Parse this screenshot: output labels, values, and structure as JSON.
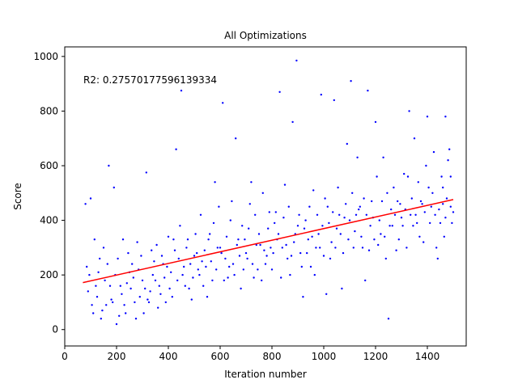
{
  "chart_data": {
    "type": "scatter",
    "title": "All Optimizations",
    "xlabel": "Iteration number",
    "ylabel": "Score",
    "xlim": [
      0,
      1550
    ],
    "ylim": [
      -60,
      1035
    ],
    "xticks": [
      0,
      200,
      400,
      600,
      800,
      1000,
      1200,
      1400
    ],
    "yticks": [
      0,
      200,
      400,
      600,
      800,
      1000
    ],
    "grid": false,
    "annotation": "R2: 0.27570177596139334",
    "point_color": "#0000ff",
    "line_color": "#ff0000",
    "fit_line": {
      "x": [
        70,
        1500
      ],
      "y": [
        172,
        476
      ]
    },
    "points": [
      [
        90,
        140
      ],
      [
        120,
        160
      ],
      [
        160,
        90
      ],
      [
        200,
        20
      ],
      [
        150,
        300
      ],
      [
        220,
        130
      ],
      [
        250,
        210
      ],
      [
        300,
        180
      ],
      [
        330,
        140
      ],
      [
        350,
        180
      ],
      [
        380,
        240
      ],
      [
        420,
        330
      ],
      [
        460,
        230
      ],
      [
        500,
        270
      ],
      [
        560,
        350
      ],
      [
        600,
        300
      ],
      [
        650,
        240
      ],
      [
        700,
        280
      ],
      [
        740,
        310
      ],
      [
        780,
        270
      ],
      [
        820,
        330
      ],
      [
        860,
        260
      ],
      [
        900,
        380
      ],
      [
        940,
        330
      ],
      [
        980,
        350
      ],
      [
        1020,
        390
      ],
      [
        1060,
        420
      ],
      [
        1100,
        400
      ],
      [
        1140,
        450
      ],
      [
        1180,
        380
      ],
      [
        1220,
        350
      ],
      [
        1260,
        440
      ],
      [
        1300,
        410
      ],
      [
        1340,
        480
      ],
      [
        1380,
        460
      ],
      [
        1420,
        500
      ],
      [
        1460,
        520
      ],
      [
        1490,
        450
      ],
      [
        1500,
        430
      ],
      [
        95,
        200
      ],
      [
        110,
        60
      ],
      [
        135,
        260
      ],
      [
        170,
        600
      ],
      [
        190,
        520
      ],
      [
        230,
        90
      ],
      [
        260,
        240
      ],
      [
        290,
        120
      ],
      [
        315,
        575
      ],
      [
        345,
        250
      ],
      [
        370,
        130
      ],
      [
        395,
        230
      ],
      [
        430,
        660
      ],
      [
        450,
        875
      ],
      [
        480,
        150
      ],
      [
        520,
        200
      ],
      [
        550,
        120
      ],
      [
        580,
        540
      ],
      [
        610,
        830
      ],
      [
        630,
        190
      ],
      [
        660,
        700
      ],
      [
        680,
        150
      ],
      [
        720,
        540
      ],
      [
        760,
        180
      ],
      [
        790,
        430
      ],
      [
        830,
        870
      ],
      [
        850,
        530
      ],
      [
        880,
        760
      ],
      [
        895,
        985
      ],
      [
        920,
        120
      ],
      [
        960,
        510
      ],
      [
        990,
        860
      ],
      [
        1010,
        130
      ],
      [
        1040,
        840
      ],
      [
        1070,
        150
      ],
      [
        1090,
        680
      ],
      [
        1105,
        910
      ],
      [
        1130,
        630
      ],
      [
        1160,
        180
      ],
      [
        1170,
        875
      ],
      [
        1200,
        760
      ],
      [
        1230,
        630
      ],
      [
        1250,
        40
      ],
      [
        1280,
        290
      ],
      [
        1310,
        570
      ],
      [
        1330,
        800
      ],
      [
        1350,
        700
      ],
      [
        1370,
        340
      ],
      [
        1400,
        780
      ],
      [
        1440,
        260
      ],
      [
        1470,
        780
      ],
      [
        1485,
        660
      ],
      [
        105,
        90
      ],
      [
        125,
        120
      ],
      [
        145,
        70
      ],
      [
        175,
        160
      ],
      [
        185,
        100
      ],
      [
        210,
        50
      ],
      [
        240,
        170
      ],
      [
        270,
        100
      ],
      [
        280,
        320
      ],
      [
        305,
        60
      ],
      [
        325,
        100
      ],
      [
        360,
        80
      ],
      [
        385,
        190
      ],
      [
        405,
        150
      ],
      [
        440,
        260
      ],
      [
        470,
        300
      ],
      [
        490,
        110
      ],
      [
        510,
        280
      ],
      [
        530,
        250
      ],
      [
        570,
        180
      ],
      [
        590,
        300
      ],
      [
        620,
        260
      ],
      [
        640,
        400
      ],
      [
        670,
        330
      ],
      [
        690,
        220
      ],
      [
        710,
        370
      ],
      [
        730,
        190
      ],
      [
        750,
        350
      ],
      [
        770,
        290
      ],
      [
        800,
        220
      ],
      [
        810,
        390
      ],
      [
        840,
        300
      ],
      [
        870,
        200
      ],
      [
        890,
        350
      ],
      [
        910,
        280
      ],
      [
        930,
        400
      ],
      [
        950,
        230
      ],
      [
        970,
        300
      ],
      [
        1000,
        270
      ],
      [
        1015,
        450
      ],
      [
        1030,
        320
      ],
      [
        1050,
        370
      ],
      [
        1075,
        280
      ],
      [
        1085,
        460
      ],
      [
        1115,
        300
      ],
      [
        1125,
        420
      ],
      [
        1145,
        340
      ],
      [
        1155,
        480
      ],
      [
        1175,
        290
      ],
      [
        1190,
        410
      ],
      [
        1210,
        310
      ],
      [
        1225,
        470
      ],
      [
        1240,
        260
      ],
      [
        1265,
        380
      ],
      [
        1270,
        520
      ],
      [
        1290,
        330
      ],
      [
        1295,
        460
      ],
      [
        1320,
        300
      ],
      [
        1325,
        560
      ],
      [
        1345,
        380
      ],
      [
        1355,
        420
      ],
      [
        1365,
        540
      ],
      [
        1385,
        320
      ],
      [
        1395,
        600
      ],
      [
        1410,
        390
      ],
      [
        1425,
        650
      ],
      [
        1435,
        300
      ],
      [
        1445,
        440
      ],
      [
        1455,
        560
      ],
      [
        1465,
        340
      ],
      [
        1475,
        480
      ],
      [
        1480,
        620
      ],
      [
        1495,
        390
      ],
      [
        80,
        460
      ],
      [
        85,
        230
      ],
      [
        100,
        480
      ],
      [
        115,
        330
      ],
      [
        130,
        210
      ],
      [
        140,
        40
      ],
      [
        155,
        180
      ],
      [
        165,
        240
      ],
      [
        180,
        110
      ],
      [
        195,
        200
      ],
      [
        205,
        260
      ],
      [
        215,
        160
      ],
      [
        225,
        330
      ],
      [
        235,
        60
      ],
      [
        245,
        280
      ],
      [
        255,
        150
      ],
      [
        265,
        190
      ],
      [
        275,
        40
      ],
      [
        285,
        220
      ],
      [
        295,
        270
      ],
      [
        310,
        150
      ],
      [
        320,
        110
      ],
      [
        335,
        290
      ],
      [
        340,
        200
      ],
      [
        355,
        310
      ],
      [
        365,
        160
      ],
      [
        375,
        270
      ],
      [
        390,
        100
      ],
      [
        400,
        340
      ],
      [
        410,
        210
      ],
      [
        415,
        120
      ],
      [
        425,
        290
      ],
      [
        435,
        180
      ],
      [
        445,
        380
      ],
      [
        455,
        200
      ],
      [
        465,
        160
      ],
      [
        475,
        330
      ],
      [
        485,
        240
      ],
      [
        495,
        190
      ],
      [
        505,
        350
      ],
      [
        515,
        220
      ],
      [
        525,
        420
      ],
      [
        535,
        160
      ],
      [
        540,
        290
      ],
      [
        545,
        230
      ],
      [
        555,
        330
      ],
      [
        565,
        250
      ],
      [
        575,
        390
      ],
      [
        585,
        220
      ],
      [
        595,
        450
      ],
      [
        605,
        280
      ],
      [
        615,
        180
      ],
      [
        625,
        340
      ],
      [
        635,
        230
      ],
      [
        645,
        470
      ],
      [
        655,
        200
      ],
      [
        665,
        310
      ],
      [
        675,
        270
      ],
      [
        685,
        380
      ],
      [
        695,
        330
      ],
      [
        705,
        260
      ],
      [
        715,
        460
      ],
      [
        725,
        240
      ],
      [
        735,
        420
      ],
      [
        745,
        220
      ],
      [
        755,
        310
      ],
      [
        765,
        500
      ],
      [
        775,
        240
      ],
      [
        785,
        370
      ],
      [
        795,
        300
      ],
      [
        805,
        280
      ],
      [
        815,
        430
      ],
      [
        825,
        350
      ],
      [
        835,
        190
      ],
      [
        845,
        410
      ],
      [
        855,
        310
      ],
      [
        865,
        450
      ],
      [
        875,
        270
      ],
      [
        885,
        320
      ],
      [
        905,
        420
      ],
      [
        915,
        230
      ],
      [
        925,
        370
      ],
      [
        935,
        280
      ],
      [
        945,
        450
      ],
      [
        955,
        340
      ],
      [
        965,
        200
      ],
      [
        975,
        420
      ],
      [
        985,
        300
      ],
      [
        995,
        380
      ],
      [
        1005,
        480
      ],
      [
        1025,
        260
      ],
      [
        1035,
        430
      ],
      [
        1045,
        300
      ],
      [
        1055,
        520
      ],
      [
        1065,
        350
      ],
      [
        1080,
        410
      ],
      [
        1095,
        330
      ],
      [
        1110,
        500
      ],
      [
        1120,
        360
      ],
      [
        1135,
        440
      ],
      [
        1150,
        300
      ],
      [
        1165,
        420
      ],
      [
        1185,
        470
      ],
      [
        1195,
        330
      ],
      [
        1205,
        560
      ],
      [
        1215,
        400
      ],
      [
        1235,
        340
      ],
      [
        1245,
        500
      ],
      [
        1255,
        380
      ],
      [
        1275,
        420
      ],
      [
        1285,
        470
      ],
      [
        1305,
        380
      ],
      [
        1315,
        440
      ],
      [
        1335,
        420
      ],
      [
        1360,
        390
      ],
      [
        1375,
        470
      ],
      [
        1390,
        430
      ],
      [
        1405,
        520
      ],
      [
        1415,
        450
      ],
      [
        1430,
        420
      ],
      [
        1450,
        390
      ],
      [
        1460,
        460
      ],
      [
        1470,
        410
      ],
      [
        1490,
        560
      ]
    ]
  }
}
